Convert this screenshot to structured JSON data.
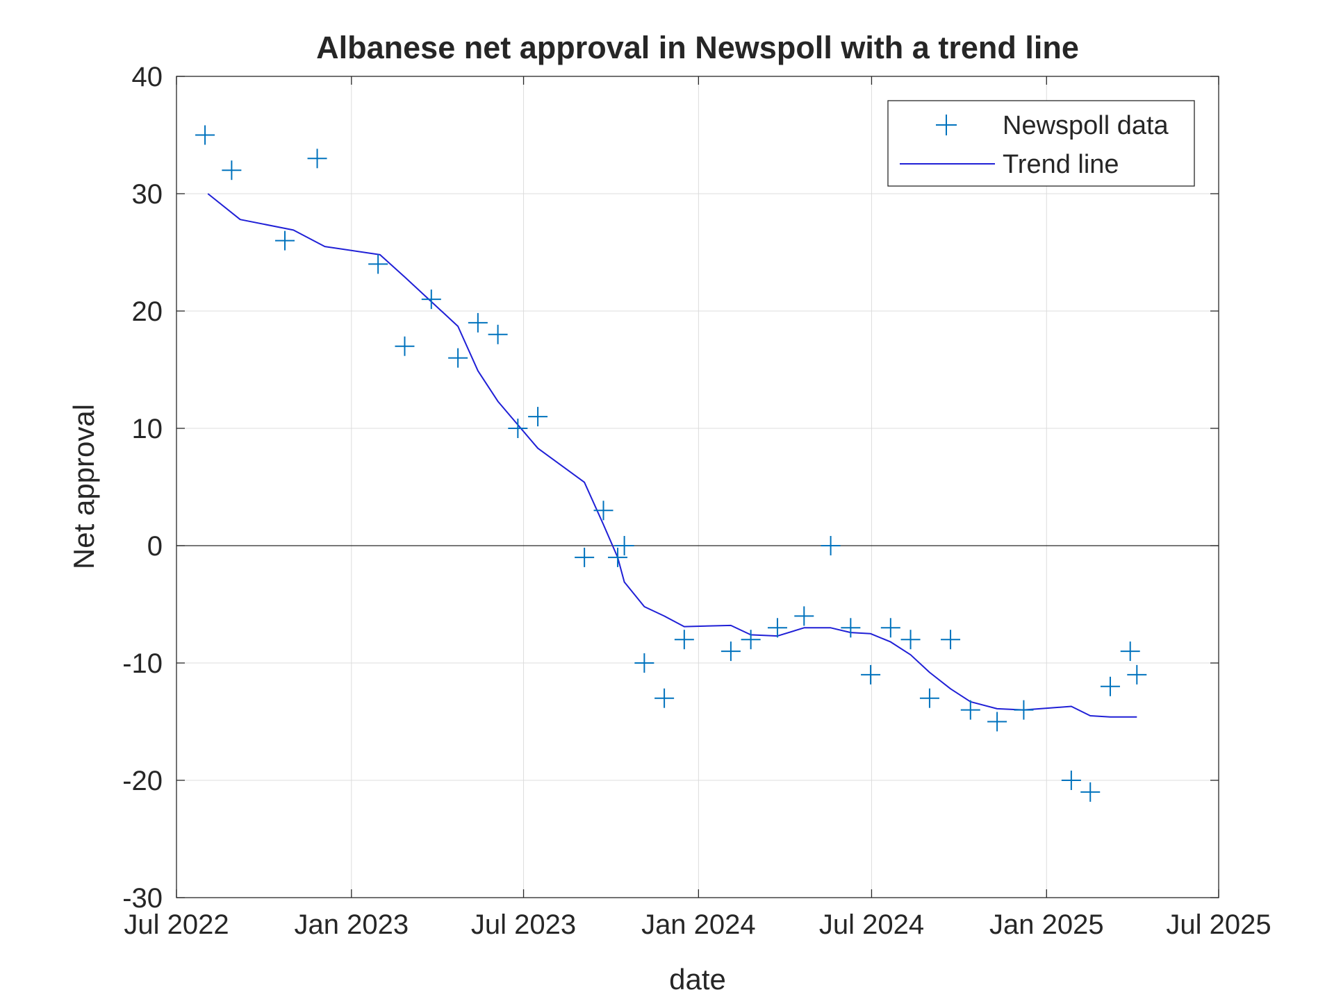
{
  "chart_data": {
    "type": "scatter",
    "title": "Albanese net approval in Newspoll with a trend line",
    "xlabel": "date",
    "ylabel": "Net approval",
    "xlim": [
      "2022-07-01",
      "2025-07-01"
    ],
    "ylim": [
      -30,
      40
    ],
    "x_ticks": [
      {
        "date": "2022-07-01",
        "label": "Jul 2022"
      },
      {
        "date": "2023-01-01",
        "label": "Jan 2023"
      },
      {
        "date": "2023-07-01",
        "label": "Jul 2023"
      },
      {
        "date": "2024-01-01",
        "label": "Jan 2024"
      },
      {
        "date": "2024-07-01",
        "label": "Jul 2024"
      },
      {
        "date": "2025-01-01",
        "label": "Jan 2025"
      },
      {
        "date": "2025-07-01",
        "label": "Jul 2025"
      }
    ],
    "y_ticks": [
      {
        "value": 40,
        "label": "40"
      },
      {
        "value": 30,
        "label": "30"
      },
      {
        "value": 20,
        "label": "20"
      },
      {
        "value": 10,
        "label": "10"
      },
      {
        "value": 0,
        "label": "0"
      },
      {
        "value": -10,
        "label": "-10"
      },
      {
        "value": -20,
        "label": "-20"
      },
      {
        "value": -30,
        "label": "-30"
      }
    ],
    "grid": true,
    "zero_line": true,
    "legend_position": "top-right",
    "series": [
      {
        "name": "Newspoll data",
        "kind": "scatter",
        "marker": "plus",
        "color": "#0072BD",
        "points": [
          {
            "x": "2022-07-31",
            "y": 35
          },
          {
            "x": "2022-08-28",
            "y": 32
          },
          {
            "x": "2022-10-23",
            "y": 26
          },
          {
            "x": "2022-11-26",
            "y": 33
          },
          {
            "x": "2023-01-29",
            "y": 24
          },
          {
            "x": "2023-02-26",
            "y": 17
          },
          {
            "x": "2023-03-26",
            "y": 21
          },
          {
            "x": "2023-04-23",
            "y": 16
          },
          {
            "x": "2023-05-14",
            "y": 19
          },
          {
            "x": "2023-06-04",
            "y": 18
          },
          {
            "x": "2023-06-25",
            "y": 10
          },
          {
            "x": "2023-07-16",
            "y": 11
          },
          {
            "x": "2023-09-03",
            "y": -1
          },
          {
            "x": "2023-09-23",
            "y": 3
          },
          {
            "x": "2023-10-08",
            "y": -1
          },
          {
            "x": "2023-10-15",
            "y": 0
          },
          {
            "x": "2023-11-05",
            "y": -10
          },
          {
            "x": "2023-11-26",
            "y": -13
          },
          {
            "x": "2023-12-17",
            "y": -8
          },
          {
            "x": "2024-02-04",
            "y": -9
          },
          {
            "x": "2024-02-25",
            "y": -8
          },
          {
            "x": "2024-03-24",
            "y": -7
          },
          {
            "x": "2024-04-21",
            "y": -6
          },
          {
            "x": "2024-05-19",
            "y": 0
          },
          {
            "x": "2024-06-09",
            "y": -7
          },
          {
            "x": "2024-06-30",
            "y": -11
          },
          {
            "x": "2024-07-21",
            "y": -7
          },
          {
            "x": "2024-08-11",
            "y": -8
          },
          {
            "x": "2024-08-31",
            "y": -13
          },
          {
            "x": "2024-09-22",
            "y": -8
          },
          {
            "x": "2024-10-13",
            "y": -14
          },
          {
            "x": "2024-11-10",
            "y": -15
          },
          {
            "x": "2024-12-08",
            "y": -14
          },
          {
            "x": "2025-01-27",
            "y": -20
          },
          {
            "x": "2025-02-16",
            "y": -21
          },
          {
            "x": "2025-03-09",
            "y": -12
          },
          {
            "x": "2025-03-30",
            "y": -9
          },
          {
            "x": "2025-04-06",
            "y": -11
          }
        ]
      },
      {
        "name": "Trend line",
        "kind": "line",
        "color": "#1f1fd6",
        "points": [
          {
            "x": "2022-08-03",
            "y": 30
          },
          {
            "x": "2022-09-06",
            "y": 27.8
          },
          {
            "x": "2022-11-01",
            "y": 26.9
          },
          {
            "x": "2022-12-04",
            "y": 25.5
          },
          {
            "x": "2023-01-31",
            "y": 24.8
          },
          {
            "x": "2023-02-26",
            "y": 22.9
          },
          {
            "x": "2023-04-23",
            "y": 18.7
          },
          {
            "x": "2023-05-14",
            "y": 14.9
          },
          {
            "x": "2023-06-04",
            "y": 12.3
          },
          {
            "x": "2023-06-25",
            "y": 10.3
          },
          {
            "x": "2023-07-16",
            "y": 8.3
          },
          {
            "x": "2023-09-03",
            "y": 5.4
          },
          {
            "x": "2023-09-23",
            "y": 1.8
          },
          {
            "x": "2023-10-08",
            "y": -1.0
          },
          {
            "x": "2023-10-15",
            "y": -3.1
          },
          {
            "x": "2023-11-05",
            "y": -5.2
          },
          {
            "x": "2023-11-26",
            "y": -6.0
          },
          {
            "x": "2023-12-17",
            "y": -6.9
          },
          {
            "x": "2024-02-04",
            "y": -6.8
          },
          {
            "x": "2024-02-25",
            "y": -7.6
          },
          {
            "x": "2024-03-24",
            "y": -7.7
          },
          {
            "x": "2024-04-21",
            "y": -7.0
          },
          {
            "x": "2024-05-19",
            "y": -7.0
          },
          {
            "x": "2024-06-09",
            "y": -7.4
          },
          {
            "x": "2024-06-30",
            "y": -7.5
          },
          {
            "x": "2024-07-21",
            "y": -8.2
          },
          {
            "x": "2024-08-11",
            "y": -9.3
          },
          {
            "x": "2024-08-31",
            "y": -10.8
          },
          {
            "x": "2024-09-22",
            "y": -12.2
          },
          {
            "x": "2024-10-13",
            "y": -13.3
          },
          {
            "x": "2024-11-10",
            "y": -13.9
          },
          {
            "x": "2024-12-08",
            "y": -14.0
          },
          {
            "x": "2025-01-27",
            "y": -13.7
          },
          {
            "x": "2025-02-16",
            "y": -14.5
          },
          {
            "x": "2025-03-09",
            "y": -14.6
          },
          {
            "x": "2025-03-30",
            "y": -14.6
          },
          {
            "x": "2025-04-06",
            "y": -14.6
          }
        ]
      }
    ]
  }
}
